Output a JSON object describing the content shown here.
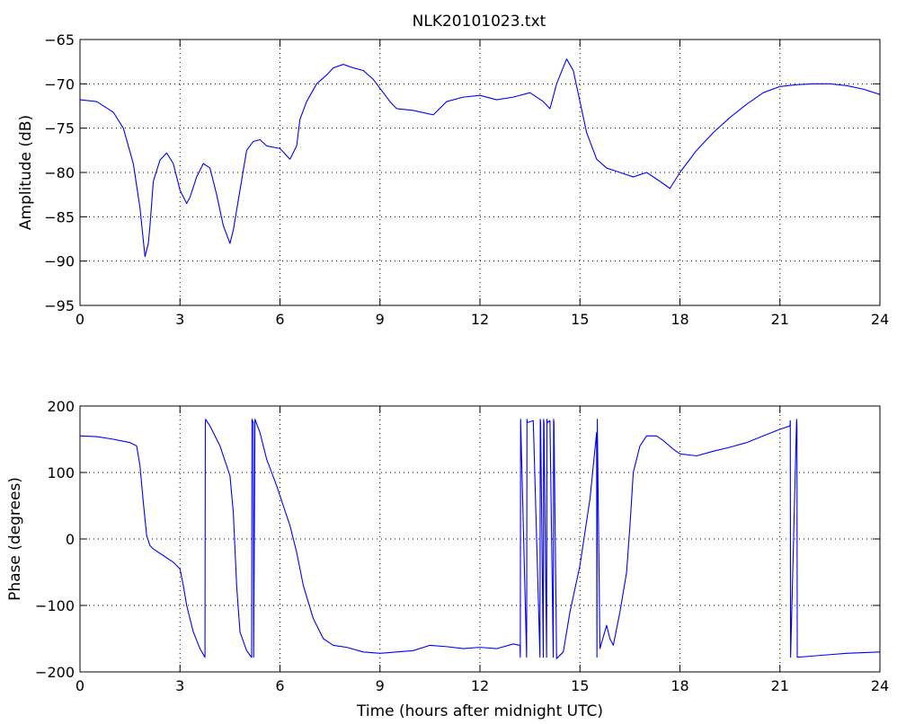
{
  "chart_data": [
    {
      "type": "line",
      "title": "NLK20101023.txt",
      "xlabel": "",
      "ylabel": "Amplitude (dB)",
      "xlim": [
        0,
        24
      ],
      "ylim": [
        -95,
        -65
      ],
      "xticks": [
        0,
        3,
        6,
        9,
        12,
        15,
        18,
        21,
        24
      ],
      "yticks": [
        -95,
        -90,
        -85,
        -80,
        -75,
        -70,
        -65
      ],
      "grid": true,
      "series": [
        {
          "color": "#0000ff",
          "x": [
            0,
            0.5,
            1.0,
            1.3,
            1.6,
            1.8,
            1.95,
            2.05,
            2.1,
            2.2,
            2.4,
            2.6,
            2.8,
            3.0,
            3.2,
            3.3,
            3.5,
            3.7,
            3.9,
            4.1,
            4.3,
            4.5,
            4.6,
            4.8,
            5.0,
            5.2,
            5.4,
            5.6,
            6.0,
            6.3,
            6.5,
            6.6,
            6.8,
            7.1,
            7.4,
            7.6,
            7.9,
            8.2,
            8.5,
            8.8,
            9.0,
            9.3,
            9.5,
            10.0,
            10.6,
            11.0,
            11.5,
            12.0,
            12.5,
            13.0,
            13.5,
            13.9,
            14.1,
            14.3,
            14.6,
            14.8,
            15.0,
            15.2,
            15.5,
            15.8,
            16.2,
            16.6,
            17.0,
            17.4,
            17.7,
            18.0,
            18.5,
            19.0,
            19.5,
            20.0,
            20.5,
            21.0,
            21.5,
            22.0,
            22.5,
            23.0,
            23.5,
            24.0
          ],
          "values": [
            -71.8,
            -72.0,
            -73.2,
            -75.0,
            -79.0,
            -84.0,
            -89.5,
            -88.0,
            -86.0,
            -81.0,
            -78.6,
            -77.8,
            -79.0,
            -82.0,
            -83.5,
            -82.8,
            -80.5,
            -79.0,
            -79.5,
            -82.5,
            -86.0,
            -88.0,
            -86.5,
            -82.0,
            -77.5,
            -76.5,
            -76.3,
            -77.0,
            -77.3,
            -78.5,
            -77.0,
            -74.0,
            -72.0,
            -70.0,
            -69.0,
            -68.2,
            -67.8,
            -68.2,
            -68.5,
            -69.5,
            -70.5,
            -72.0,
            -72.8,
            -73.0,
            -73.5,
            -72.0,
            -71.5,
            -71.3,
            -71.8,
            -71.5,
            -71.0,
            -72.0,
            -72.8,
            -70.0,
            -67.2,
            -68.5,
            -72.0,
            -75.5,
            -78.5,
            -79.5,
            -80.0,
            -80.5,
            -80.0,
            -81.0,
            -81.8,
            -80.0,
            -77.5,
            -75.5,
            -73.8,
            -72.3,
            -71.0,
            -70.3,
            -70.1,
            -70.0,
            -70.0,
            -70.2,
            -70.6,
            -71.2
          ]
        }
      ]
    },
    {
      "type": "line",
      "title": "",
      "xlabel": "Time (hours after midnight UTC)",
      "ylabel": "Phase (degrees)",
      "xlim": [
        0,
        24
      ],
      "ylim": [
        -200,
        200
      ],
      "xticks": [
        0,
        3,
        6,
        9,
        12,
        15,
        18,
        21,
        24
      ],
      "yticks": [
        -200,
        -100,
        0,
        100,
        200
      ],
      "grid": true,
      "series": [
        {
          "color": "#0000ff",
          "x": [
            0,
            0.5,
            1.0,
            1.5,
            1.7,
            1.8,
            1.9,
            2.0,
            2.1,
            2.2,
            2.5,
            2.8,
            3.0,
            3.1,
            3.2,
            3.4,
            3.6,
            3.75,
            3.76,
            3.77,
            3.9,
            4.2,
            4.5,
            4.6,
            4.7,
            4.8,
            5.0,
            5.1,
            5.15,
            5.16,
            5.2,
            5.21,
            5.25,
            5.4,
            5.6,
            5.9,
            6.1,
            6.3,
            6.5,
            6.7,
            7.0,
            7.3,
            7.6,
            8.0,
            8.5,
            9.0,
            9.5,
            10.0,
            10.5,
            11.0,
            11.5,
            12.0,
            12.5,
            13.0,
            13.2,
            13.21,
            13.22,
            13.4,
            13.41,
            13.42,
            13.6,
            13.8,
            13.81,
            13.82,
            13.9,
            13.91,
            13.92,
            14.0,
            14.01,
            14.02,
            14.1,
            14.2,
            14.21,
            14.22,
            14.3,
            14.5,
            14.7,
            15.0,
            15.3,
            15.5,
            15.51,
            15.52,
            15.6,
            15.8,
            15.9,
            16.0,
            16.2,
            16.4,
            16.5,
            16.6,
            16.8,
            17.0,
            17.3,
            17.5,
            17.8,
            18.0,
            18.5,
            19.0,
            19.5,
            20.0,
            20.5,
            21.0,
            21.3,
            21.31,
            21.32,
            21.5,
            21.51,
            21.52,
            22.0,
            22.5,
            23.0,
            23.5,
            24.0
          ],
          "values": [
            155,
            154,
            150,
            145,
            140,
            110,
            55,
            5,
            -10,
            -15,
            -25,
            -35,
            -45,
            -70,
            -100,
            -140,
            -165,
            -178,
            175,
            180,
            170,
            140,
            95,
            40,
            -70,
            -140,
            -168,
            -175,
            -178,
            180,
            175,
            -178,
            180,
            160,
            120,
            80,
            50,
            20,
            -20,
            -70,
            -120,
            -150,
            -160,
            -163,
            -170,
            -172,
            -170,
            -168,
            -160,
            -162,
            -165,
            -163,
            -165,
            -158,
            -160,
            -178,
            180,
            -178,
            180,
            175,
            178,
            -178,
            180,
            175,
            -178,
            180,
            175,
            -178,
            180,
            175,
            178,
            -178,
            180,
            175,
            -180,
            -170,
            -110,
            -40,
            60,
            160,
            -178,
            180,
            -165,
            -130,
            -150,
            -160,
            -110,
            -50,
            20,
            100,
            140,
            155,
            155,
            148,
            135,
            128,
            125,
            132,
            138,
            145,
            155,
            165,
            170,
            178,
            -178,
            180,
            170,
            -178,
            -176,
            -174,
            -172,
            -171,
            -170
          ]
        }
      ]
    }
  ]
}
